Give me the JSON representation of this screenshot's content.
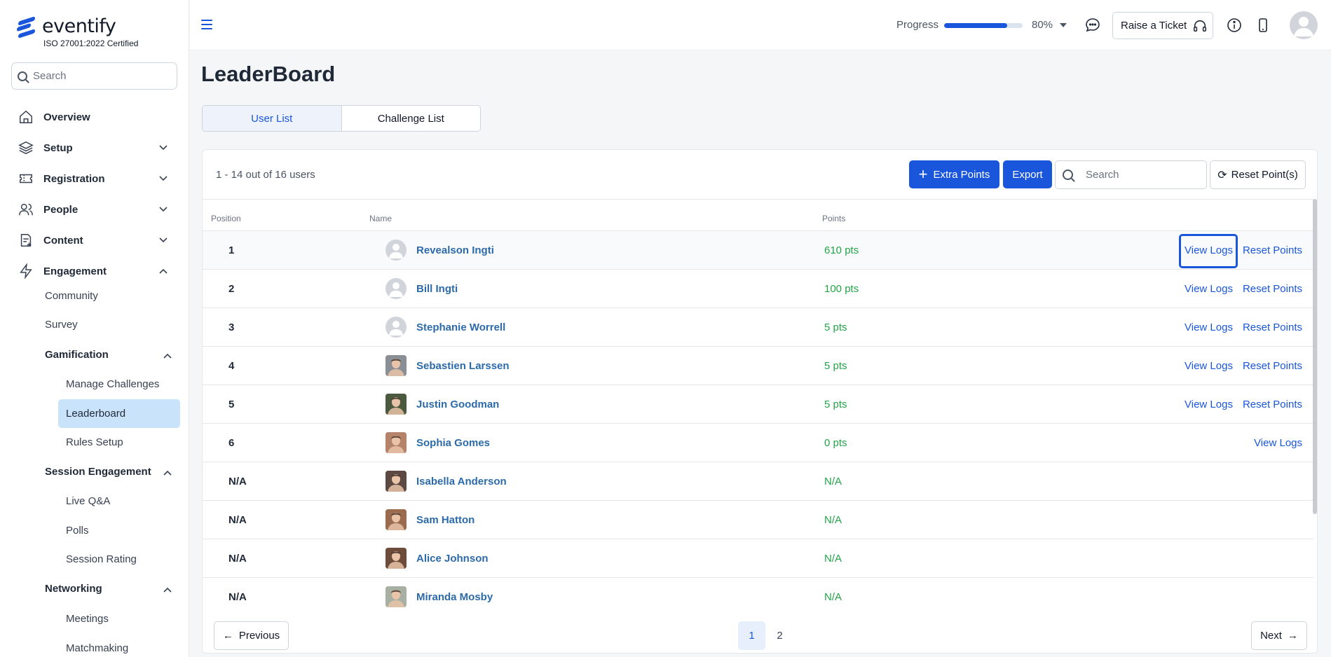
{
  "app": {
    "name": "eventify",
    "certification": "ISO 27001:2022 Certified"
  },
  "sidebar": {
    "search_placeholder": "Search",
    "nav": [
      {
        "label": "Overview",
        "icon": "home-icon"
      },
      {
        "label": "Setup",
        "icon": "layers-icon"
      },
      {
        "label": "Registration",
        "icon": "ticket-icon"
      },
      {
        "label": "People",
        "icon": "users-icon"
      },
      {
        "label": "Content",
        "icon": "document-icon"
      },
      {
        "label": "Engagement",
        "icon": "lightning-icon"
      }
    ],
    "engagement": {
      "community": "Community",
      "survey": "Survey",
      "gamification": "Gamification",
      "gamification_items": [
        "Manage Challenges",
        "Leaderboard",
        "Rules Setup"
      ],
      "session_engagement": "Session Engagement",
      "session_items": [
        "Live Q&A",
        "Polls",
        "Session Rating"
      ],
      "networking": "Networking",
      "networking_items": [
        "Meetings",
        "Matchmaking"
      ]
    }
  },
  "header": {
    "progress_label": "Progress",
    "progress_value": 0.8,
    "progress_text": "80%",
    "raise_ticket": "Raise a Ticket"
  },
  "page": {
    "title": "LeaderBoard",
    "tabs": [
      "User List",
      "Challenge List"
    ],
    "active_tab": "User List"
  },
  "toolbar": {
    "count_text": "1 - 14 out of 16 users",
    "extra_points": "Extra Points",
    "export": "Export",
    "search_placeholder": "Search",
    "reset_points_all": "Reset Point(s)"
  },
  "table": {
    "columns": [
      "Position",
      "Name",
      "Points"
    ],
    "action_view": "View Logs",
    "action_reset": "Reset Points",
    "rows": [
      {
        "position": "1",
        "name": "Revealson Ingti",
        "points": "610 pts",
        "avatar": "generic",
        "actions": "both"
      },
      {
        "position": "2",
        "name": "Bill Ingti",
        "points": "100 pts",
        "avatar": "generic",
        "actions": "both"
      },
      {
        "position": "3",
        "name": "Stephanie Worrell",
        "points": "5 pts",
        "avatar": "generic",
        "actions": "both"
      },
      {
        "position": "4",
        "name": "Sebastien Larssen",
        "points": "5 pts",
        "avatar": "photo",
        "avatar_color": "#8a8f96",
        "actions": "both"
      },
      {
        "position": "5",
        "name": "Justin Goodman",
        "points": "5 pts",
        "avatar": "photo",
        "avatar_color": "#4b5a3f",
        "actions": "both"
      },
      {
        "position": "6",
        "name": "Sophia Gomes",
        "points": "0 pts",
        "avatar": "photo",
        "avatar_color": "#b5826a",
        "actions": "logs"
      },
      {
        "position": "N/A",
        "name": "Isabella Anderson",
        "points": "N/A",
        "avatar": "photo",
        "avatar_color": "#5c4a42",
        "actions": "none"
      },
      {
        "position": "N/A",
        "name": "Sam Hatton",
        "points": "N/A",
        "avatar": "photo",
        "avatar_color": "#9a6b4f",
        "actions": "none"
      },
      {
        "position": "N/A",
        "name": "Alice Johnson",
        "points": "N/A",
        "avatar": "photo",
        "avatar_color": "#6e4c3c",
        "actions": "none"
      },
      {
        "position": "N/A",
        "name": "Miranda Mosby",
        "points": "N/A",
        "avatar": "photo",
        "avatar_color": "#a8b0a4",
        "actions": "none"
      }
    ]
  },
  "pagination": {
    "previous": "Previous",
    "next": "Next",
    "pages": [
      "1",
      "2"
    ],
    "current": "1"
  },
  "colors": {
    "accent": "#1a56db",
    "points_green": "#22a447",
    "name_blue": "#2c6aa8",
    "active_nav_bg": "#c9e3fb"
  }
}
